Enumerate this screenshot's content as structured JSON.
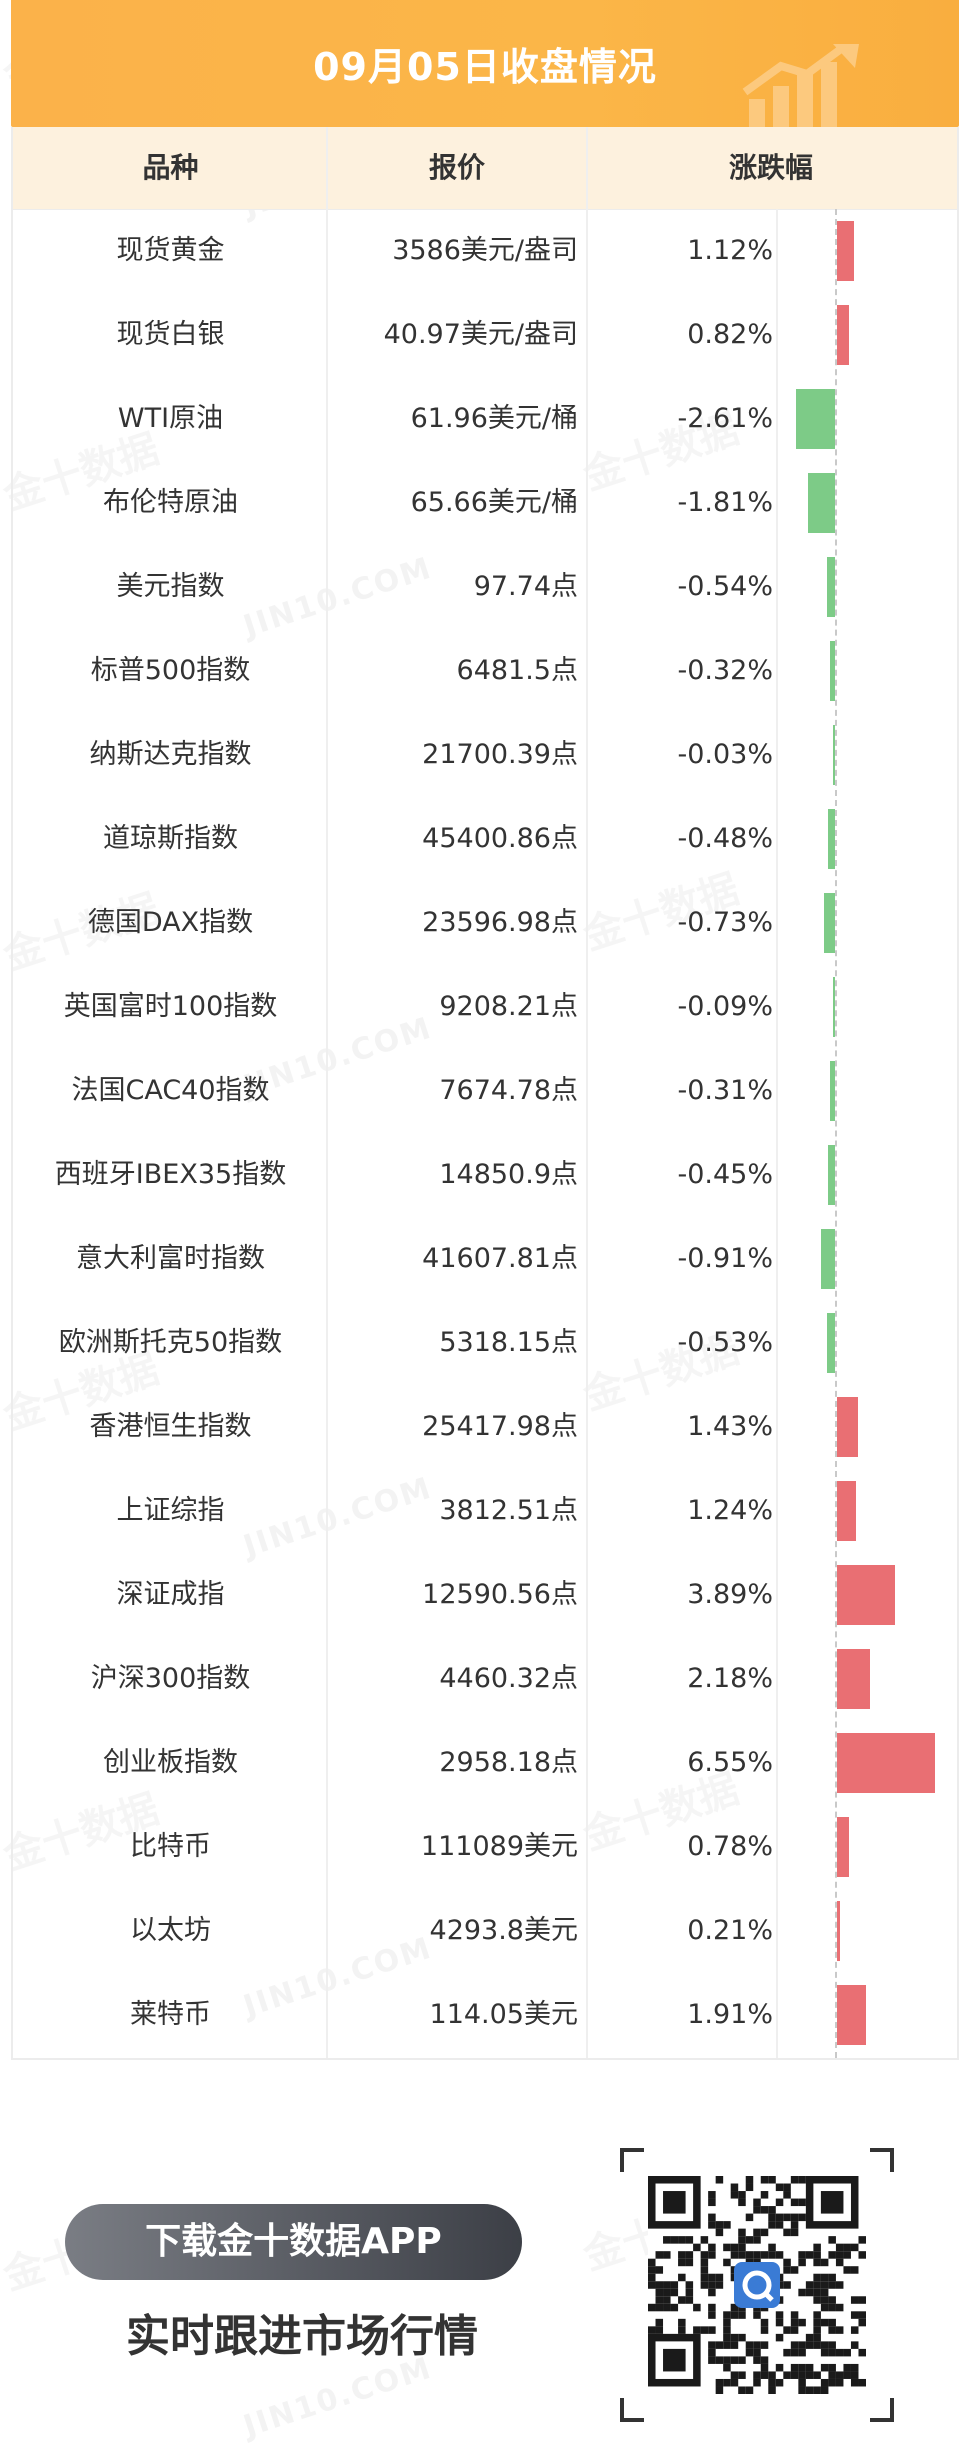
{
  "title": "09月05日收盘情况",
  "columns": [
    "品种",
    "报价",
    "涨跌幅"
  ],
  "rows": [
    {
      "name": "现货黄金",
      "price": "3586美元/盎司",
      "change": "1.12%",
      "pct": 1.12
    },
    {
      "name": "现货白银",
      "price": "40.97美元/盎司",
      "change": "0.82%",
      "pct": 0.82
    },
    {
      "name": "WTI原油",
      "price": "61.96美元/桶",
      "change": "-2.61%",
      "pct": -2.61
    },
    {
      "name": "布伦特原油",
      "price": "65.66美元/桶",
      "change": "-1.81%",
      "pct": -1.81
    },
    {
      "name": "美元指数",
      "price": "97.74点",
      "change": "-0.54%",
      "pct": -0.54
    },
    {
      "name": "标普500指数",
      "price": "6481.5点",
      "change": "-0.32%",
      "pct": -0.32
    },
    {
      "name": "纳斯达克指数",
      "price": "21700.39点",
      "change": "-0.03%",
      "pct": -0.03
    },
    {
      "name": "道琼斯指数",
      "price": "45400.86点",
      "change": "-0.48%",
      "pct": -0.48
    },
    {
      "name": "德国DAX指数",
      "price": "23596.98点",
      "change": "-0.73%",
      "pct": -0.73
    },
    {
      "name": "英国富时100指数",
      "price": "9208.21点",
      "change": "-0.09%",
      "pct": -0.09
    },
    {
      "name": "法国CAC40指数",
      "price": "7674.78点",
      "change": "-0.31%",
      "pct": -0.31
    },
    {
      "name": "西班牙IBEX35指数",
      "price": "14850.9点",
      "change": "-0.45%",
      "pct": -0.45
    },
    {
      "name": "意大利富时指数",
      "price": "41607.81点",
      "change": "-0.91%",
      "pct": -0.91
    },
    {
      "name": "欧洲斯托克50指数",
      "price": "5318.15点",
      "change": "-0.53%",
      "pct": -0.53
    },
    {
      "name": "香港恒生指数",
      "price": "25417.98点",
      "change": "1.43%",
      "pct": 1.43
    },
    {
      "name": "上证综指",
      "price": "3812.51点",
      "change": "1.24%",
      "pct": 1.24
    },
    {
      "name": "深证成指",
      "price": "12590.56点",
      "change": "3.89%",
      "pct": 3.89
    },
    {
      "name": "沪深300指数",
      "price": "4460.32点",
      "change": "2.18%",
      "pct": 2.18
    },
    {
      "name": "创业板指数",
      "price": "2958.18点",
      "change": "6.55%",
      "pct": 6.55
    },
    {
      "name": "比特币",
      "price": "111089美元",
      "change": "0.78%",
      "pct": 0.78
    },
    {
      "name": "以太坊",
      "price": "4293.8美元",
      "change": "0.21%",
      "pct": 0.21
    },
    {
      "name": "莱特币",
      "price": "114.05美元",
      "change": "1.91%",
      "pct": 1.91
    }
  ],
  "colors": {
    "up": "#e96f73",
    "down": "#7dcb87",
    "header": "#fbb24a",
    "thead": "#fdf1de"
  },
  "watermark": {
    "cn": "金十数据",
    "en": "JIN10.COM"
  },
  "footer": {
    "pill": "下载金十数据APP",
    "subtitle": "实时跟进市场行情"
  },
  "qr": {
    "icon": "qr-code-icon",
    "logo": "jin10-logo-icon"
  }
}
